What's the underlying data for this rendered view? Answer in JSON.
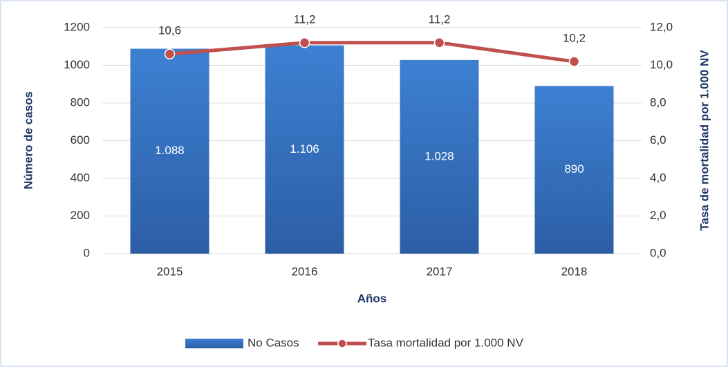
{
  "chart_data": {
    "type": "bar_line",
    "x_label": "Años",
    "y_label": "Número de casos",
    "y2_label": "Tasa de mortalidad por 1.000 NV",
    "categories": [
      "2015",
      "2016",
      "2017",
      "2018"
    ],
    "series": [
      {
        "name": "No Casos",
        "type": "bar",
        "color": "#3a78c9",
        "values": [
          1088,
          1106,
          1028,
          890
        ],
        "value_labels": [
          "1.088",
          "1.106",
          "1.028",
          "890"
        ]
      },
      {
        "name": "Tasa mortalidad por 1.000 NV",
        "type": "line",
        "axis": "y2",
        "color": "#c0504d",
        "values": [
          10.6,
          11.2,
          11.2,
          10.2
        ],
        "value_labels": [
          "10,6",
          "11,2",
          "11,2",
          "10,2"
        ]
      }
    ],
    "ylim": [
      0,
      1200
    ],
    "yticks": [
      0,
      200,
      400,
      600,
      800,
      1000,
      1200
    ],
    "y2lim": [
      0,
      12
    ],
    "y2ticks": [
      {
        "value": 0,
        "label": "0,0"
      },
      {
        "value": 2,
        "label": "2,0"
      },
      {
        "value": 4,
        "label": "4,0"
      },
      {
        "value": 6,
        "label": "6,0"
      },
      {
        "value": 8,
        "label": "8,0"
      },
      {
        "value": 10,
        "label": "10,0"
      },
      {
        "value": 12,
        "label": "12,0"
      }
    ],
    "grid": true,
    "legend": "bottom"
  }
}
